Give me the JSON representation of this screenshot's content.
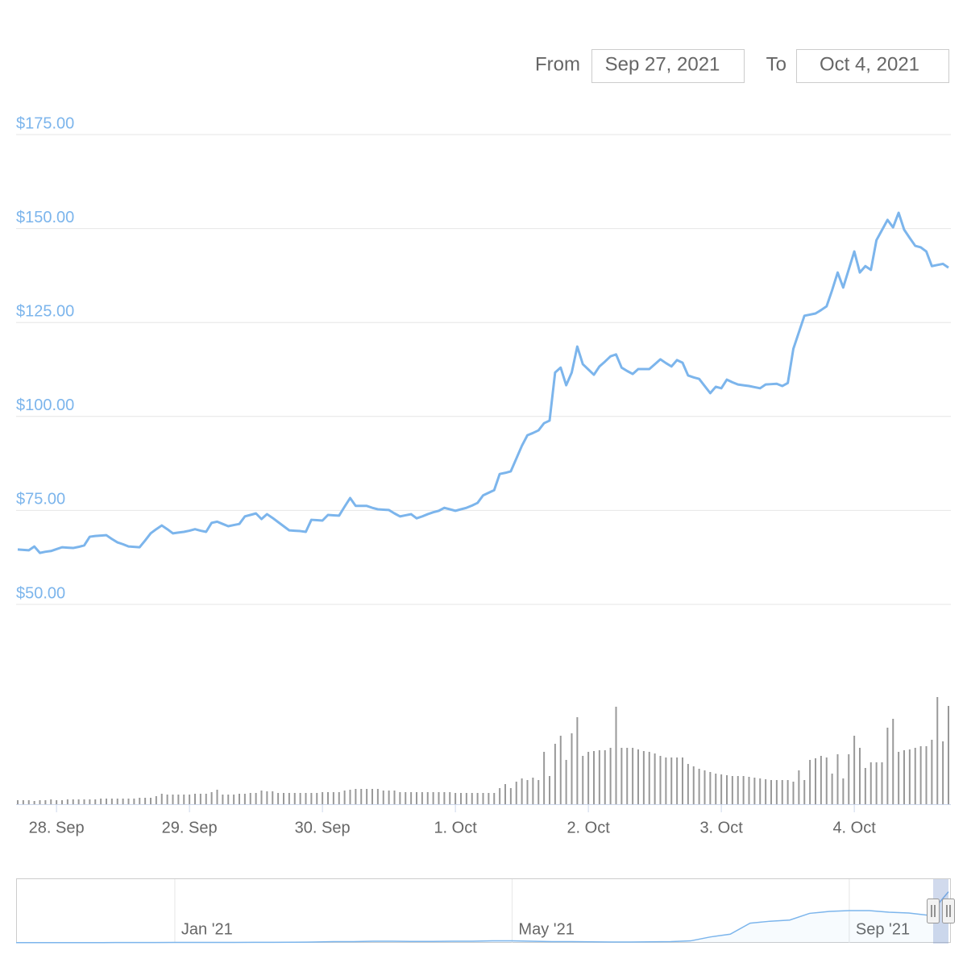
{
  "range_selector": {
    "from_label": "From",
    "from": "Sep 27, 2021",
    "to_label": "To",
    "to": "Oct 4, 2021"
  },
  "chart_data": {
    "type": "line",
    "categories": [
      null,
      null,
      null,
      null,
      null,
      null,
      null,
      "28. Sep",
      null,
      null,
      null,
      null,
      null,
      null,
      null,
      null,
      null,
      null,
      null,
      null,
      null,
      null,
      null,
      null,
      null,
      null,
      null,
      null,
      null,
      null,
      null,
      "29. Sep",
      null,
      null,
      null,
      null,
      null,
      null,
      null,
      null,
      null,
      null,
      null,
      null,
      null,
      null,
      null,
      null,
      null,
      null,
      null,
      null,
      null,
      null,
      null,
      "30. Sep",
      null,
      null,
      null,
      null,
      null,
      null,
      null,
      null,
      null,
      null,
      null,
      null,
      null,
      null,
      null,
      null,
      null,
      null,
      null,
      null,
      null,
      null,
      null,
      "1. Oct",
      null,
      null,
      null,
      null,
      null,
      null,
      null,
      null,
      null,
      null,
      null,
      null,
      null,
      null,
      null,
      null,
      null,
      null,
      null,
      null,
      null,
      null,
      null,
      "2. Oct",
      null,
      null,
      null,
      null,
      null,
      null,
      null,
      null,
      null,
      null,
      null,
      null,
      null,
      null,
      null,
      null,
      null,
      null,
      null,
      null,
      null,
      null,
      null,
      "3. Oct",
      null,
      null,
      null,
      null,
      null,
      null,
      null,
      null,
      null,
      null,
      null,
      null,
      null,
      null,
      null,
      null,
      null,
      null,
      null,
      null,
      null,
      null,
      null,
      "4. Oct",
      null,
      null,
      null,
      null,
      null,
      null,
      null,
      null,
      null,
      null,
      null,
      null,
      null,
      null,
      null,
      null,
      null
    ],
    "series": [
      {
        "type": "line",
        "color": "#7cb5ec",
        "values": [
          64.6,
          64.5,
          64.4,
          65.4,
          63.7,
          64.0,
          64.2,
          64.7,
          65.2,
          65.1,
          65.0,
          65.3,
          65.7,
          68.0,
          68.2,
          68.3,
          68.4,
          67.4,
          66.5,
          66.0,
          65.4,
          65.3,
          65.2,
          67.0,
          68.9,
          70.0,
          71.0,
          70.0,
          68.9,
          69.1,
          69.3,
          69.6,
          70.0,
          69.6,
          69.3,
          71.7,
          72.0,
          71.4,
          70.8,
          71.1,
          71.4,
          73.4,
          73.8,
          74.2,
          72.7,
          74.0,
          73.0,
          71.9,
          70.8,
          69.7,
          69.6,
          69.5,
          69.3,
          72.5,
          72.4,
          72.3,
          73.8,
          73.7,
          73.6,
          76.0,
          78.3,
          76.2,
          76.2,
          76.2,
          75.7,
          75.3,
          75.2,
          75.1,
          74.2,
          73.4,
          73.7,
          74.0,
          72.9,
          73.4,
          74.0,
          74.5,
          74.9,
          75.7,
          75.3,
          74.9,
          75.3,
          75.7,
          76.3,
          77.0,
          79.0,
          79.7,
          80.4,
          84.7,
          85.0,
          85.4,
          88.8,
          92.2,
          95.0,
          95.6,
          96.3,
          98.2,
          98.9,
          111.7,
          113.0,
          108.3,
          111.7,
          118.6,
          113.9,
          112.5,
          111.1,
          113.3,
          114.6,
          116.0,
          116.5,
          113.0,
          112.1,
          111.3,
          112.6,
          112.6,
          112.6,
          113.9,
          115.2,
          114.2,
          113.3,
          115.0,
          114.3,
          110.9,
          110.4,
          110.0,
          108.1,
          106.2,
          107.9,
          107.5,
          109.8,
          109.1,
          108.5,
          108.3,
          108.1,
          107.8,
          107.5,
          108.5,
          108.6,
          108.7,
          108.1,
          108.9,
          118.0,
          122.4,
          126.8,
          127.1,
          127.4,
          128.3,
          129.3,
          133.6,
          138.3,
          134.3,
          139.1,
          143.9,
          138.3,
          140.0,
          139.0,
          146.9,
          149.6,
          152.3,
          150.3,
          154.2,
          149.7,
          147.5,
          145.4,
          145.0,
          143.9,
          140.0,
          140.3,
          140.6,
          139.6
        ]
      },
      {
        "type": "bar",
        "axis": "y2",
        "color": "#999999",
        "values": [
          5,
          5,
          5,
          4,
          5,
          5,
          6,
          5,
          5,
          6,
          6,
          6,
          6,
          6,
          6,
          7,
          7,
          7,
          7,
          7,
          7,
          7,
          8,
          8,
          8,
          10,
          13,
          12,
          12,
          12,
          12,
          12,
          13,
          13,
          13,
          15,
          18,
          12,
          12,
          12,
          13,
          13,
          14,
          14,
          17,
          16,
          16,
          14,
          14,
          14,
          14,
          14,
          14,
          14,
          14,
          15,
          15,
          15,
          15,
          17,
          18,
          19,
          19,
          19,
          19,
          19,
          17,
          17,
          17,
          15,
          15,
          15,
          15,
          15,
          15,
          15,
          15,
          15,
          15,
          14,
          14,
          14,
          14,
          14,
          14,
          14,
          14,
          20,
          25,
          20,
          28,
          32,
          30,
          33,
          30,
          65,
          35,
          75,
          85,
          55,
          88,
          108,
          60,
          65,
          66,
          67,
          67,
          70,
          121,
          70,
          70,
          70,
          68,
          66,
          65,
          63,
          60,
          58,
          58,
          58,
          58,
          50,
          47,
          44,
          42,
          40,
          38,
          37,
          36,
          35,
          35,
          35,
          34,
          33,
          32,
          31,
          30,
          30,
          30,
          30,
          28,
          42,
          30,
          55,
          57,
          60,
          58,
          38,
          62,
          32,
          62,
          85,
          70,
          45,
          52,
          52,
          52,
          95,
          106,
          65,
          67,
          68,
          70,
          72,
          72,
          80,
          133,
          78,
          122
        ]
      }
    ],
    "ylim": [
      50,
      175
    ],
    "yticks": [
      {
        "value": 50,
        "label": "$50.00"
      },
      {
        "value": 75,
        "label": "$75.00"
      },
      {
        "value": 100,
        "label": "$100.00"
      },
      {
        "value": 125,
        "label": "$125.00"
      },
      {
        "value": 150,
        "label": "$150.00"
      },
      {
        "value": 175,
        "label": "$175.00"
      }
    ],
    "y2lim": [
      0,
      140
    ],
    "grid": true,
    "navigator": {
      "color": "#7cb5ec",
      "ylim": [
        0,
        160
      ],
      "categories": [
        null,
        null,
        null,
        null,
        null,
        null,
        null,
        null,
        "Jan '21",
        null,
        null,
        null,
        null,
        null,
        null,
        null,
        null,
        null,
        null,
        null,
        null,
        null,
        null,
        null,
        null,
        "May '21",
        null,
        null,
        null,
        null,
        null,
        null,
        null,
        null,
        null,
        null,
        null,
        null,
        null,
        null,
        null,
        null,
        "Sep '21",
        null,
        null,
        null,
        null,
        null
      ],
      "values": [
        0.5,
        0.5,
        0.5,
        0.6,
        0.6,
        0.7,
        0.7,
        0.8,
        0.9,
        1,
        1,
        1,
        1.2,
        1.3,
        1.5,
        2,
        3,
        3,
        4,
        4,
        3.5,
        3.5,
        4,
        4,
        5,
        5,
        4,
        3,
        3,
        2.5,
        2,
        2,
        2.5,
        3,
        5,
        15,
        22,
        50,
        55,
        58,
        75,
        80,
        82,
        82,
        78,
        76,
        70,
        130
      ]
    }
  }
}
